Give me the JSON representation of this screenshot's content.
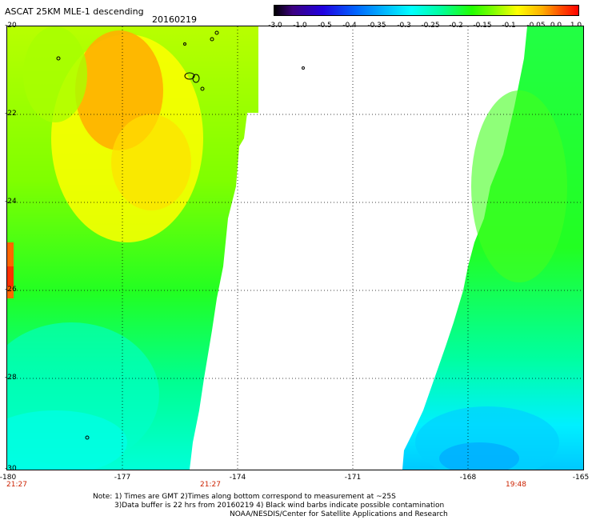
{
  "header": {
    "title": "ASCAT 25KM MLE-1 descending",
    "date": "20160219"
  },
  "colorbar": {
    "labels": [
      "-3.0",
      "-1.0",
      "-0.5",
      "-0.4",
      "-0.35",
      "-0.3",
      "-0.25",
      "-0.2",
      "-0.15",
      "-0.1",
      "-0.05",
      "0.0",
      "1.0"
    ]
  },
  "axes": {
    "lat_labels": [
      "-20",
      "-22",
      "-24",
      "-26",
      "-28",
      "-30"
    ],
    "lon_labels": [
      "-180",
      "-177",
      "-174",
      "-171",
      "-168",
      "-165"
    ]
  },
  "times": {
    "left": "21:27",
    "middle": "21:27",
    "right": "19:48"
  },
  "notes": {
    "line1": "Note: 1) Times are GMT 2)Times along bottom correspond to measurement at ~25S",
    "line2": "3)Data buffer is 22 hrs from 20160219 4) Black wind barbs indicate possible contamination",
    "line3": "NOAA/NESDIS/Center for Satellite Applications and Research"
  },
  "colors": {
    "time_label": "#cc2200",
    "no_data": "#ffffff"
  }
}
